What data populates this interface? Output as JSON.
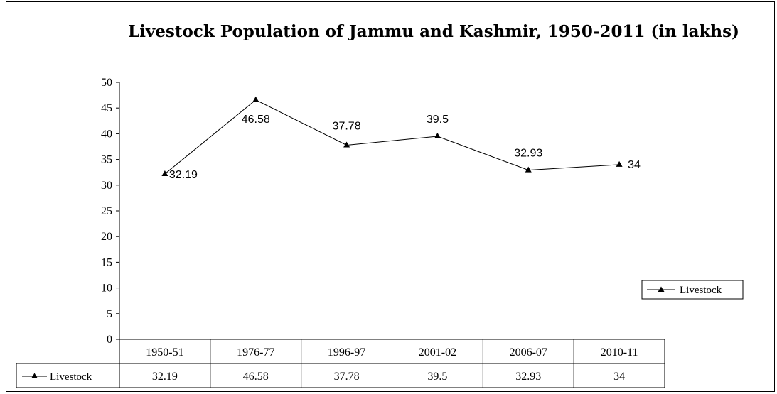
{
  "chart_data": {
    "type": "line",
    "title": "Livestock Population of Jammu and Kashmir, 1950-2011 (in lakhs)",
    "categories": [
      "1950-51",
      "1976-77",
      "1996-97",
      "2001-02",
      "2006-07",
      "2010-11"
    ],
    "series": [
      {
        "name": "Livestock",
        "values": [
          32.19,
          46.58,
          37.78,
          39.5,
          32.93,
          34
        ]
      }
    ],
    "data_labels": [
      "32.19",
      "46.58",
      "37.78",
      "39.5",
      "32.93",
      "34"
    ],
    "yticks": [
      "0",
      "5",
      "10",
      "15",
      "20",
      "25",
      "30",
      "35",
      "40",
      "45",
      "50"
    ],
    "ylim": [
      0,
      50
    ],
    "xlabel": "",
    "ylabel": "",
    "legend": {
      "placement": "right",
      "label": "Livestock"
    },
    "data_table": {
      "row_label": "Livestock",
      "values": [
        "32.19",
        "46.58",
        "37.78",
        "39.5",
        "32.93",
        "34"
      ]
    },
    "grid": false,
    "line_color": "#000000",
    "marker": "triangle"
  }
}
